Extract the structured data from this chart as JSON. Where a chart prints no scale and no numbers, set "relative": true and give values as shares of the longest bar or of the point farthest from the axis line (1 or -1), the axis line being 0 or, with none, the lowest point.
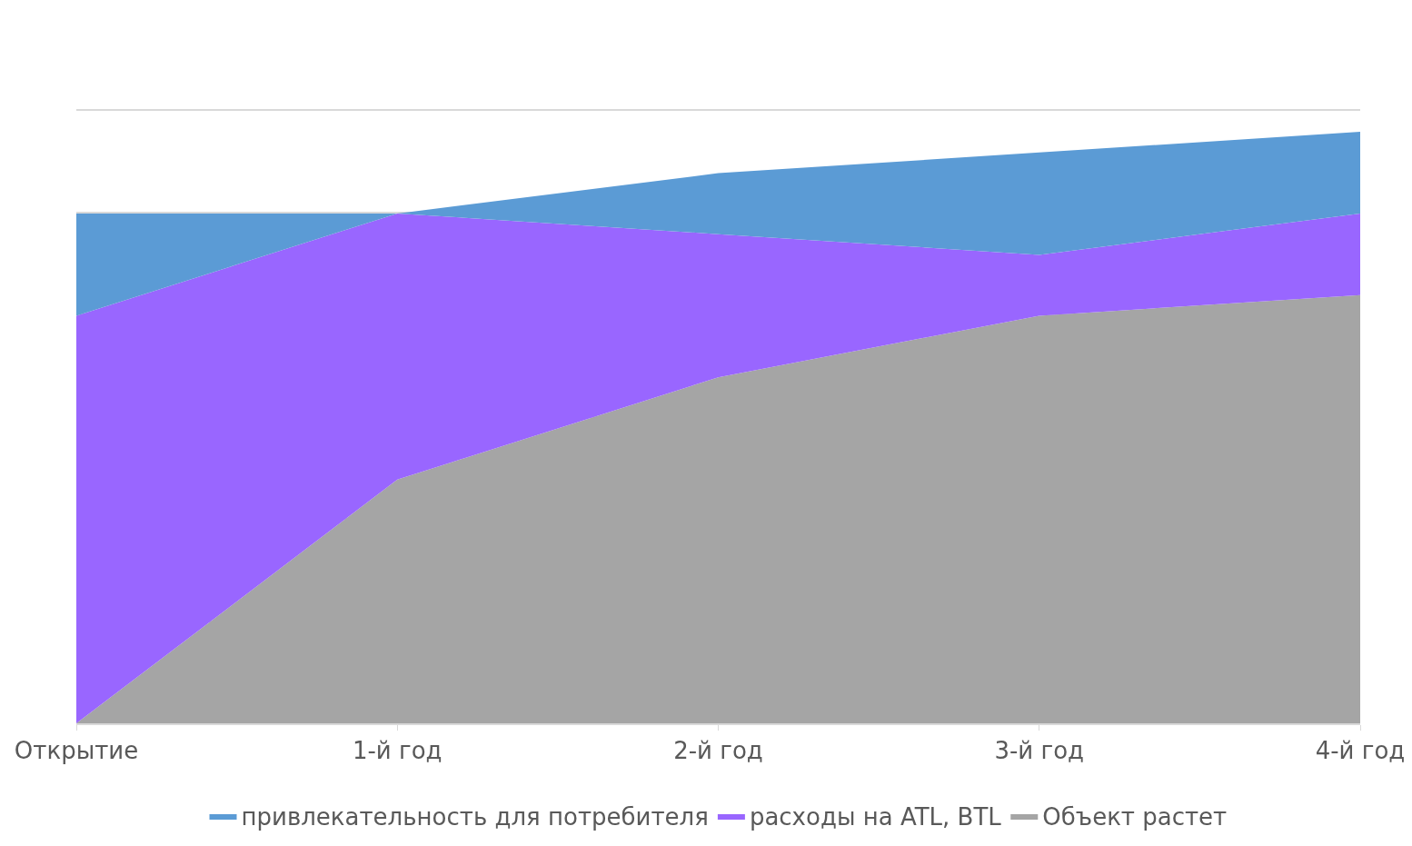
{
  "chart_data": {
    "type": "area",
    "stacked": true,
    "relative": true,
    "categories": [
      "Открытие",
      "1-й год",
      "2-й год",
      "3-й год",
      "4-й год"
    ],
    "series": [
      {
        "name": "Объект растет",
        "color": "#a5a5a5",
        "values": [
          0,
          0.412,
          0.585,
          0.689,
          0.724
        ]
      },
      {
        "name": "расходы на ATL, BTL",
        "color": "#9966ff",
        "values": [
          0.689,
          0.45,
          0.242,
          0.103,
          0.138
        ]
      },
      {
        "name": "привлекательность для потребителя",
        "color": "#5b9bd5",
        "values": [
          0.173,
          0,
          0.103,
          0.173,
          0.138
        ]
      }
    ],
    "grid": "y",
    "legend": "bottom"
  }
}
